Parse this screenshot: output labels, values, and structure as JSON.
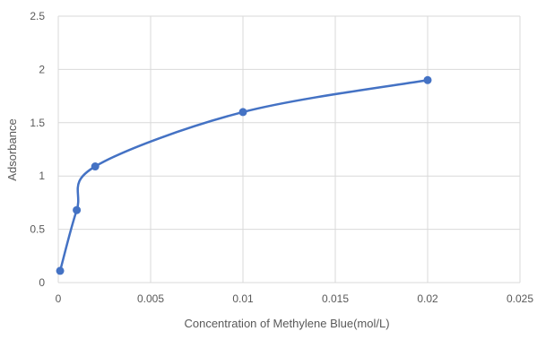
{
  "chart_data": {
    "type": "scatter",
    "title": "",
    "xlabel": "Concentration of Methylene Blue(mol/L)",
    "ylabel": "Adsorbance",
    "xlim": [
      0,
      0.025
    ],
    "ylim": [
      0,
      2.5
    ],
    "x_ticks": [
      "0",
      "0.005",
      "0.01",
      "0.015",
      "0.02",
      "0.025"
    ],
    "y_ticks": [
      "0",
      "0.5",
      "1",
      "1.5",
      "2",
      "2.5"
    ],
    "grid": true,
    "smooth_line": true,
    "legend": "none",
    "series": [
      {
        "x": [
          0.0001,
          0.001,
          0.002,
          0.01,
          0.02
        ],
        "y": [
          0.11,
          0.68,
          1.09,
          1.6,
          1.9
        ]
      }
    ],
    "colors": {
      "series": "#4472C4",
      "grid": "#D9D9D9",
      "text": "#595959"
    }
  }
}
